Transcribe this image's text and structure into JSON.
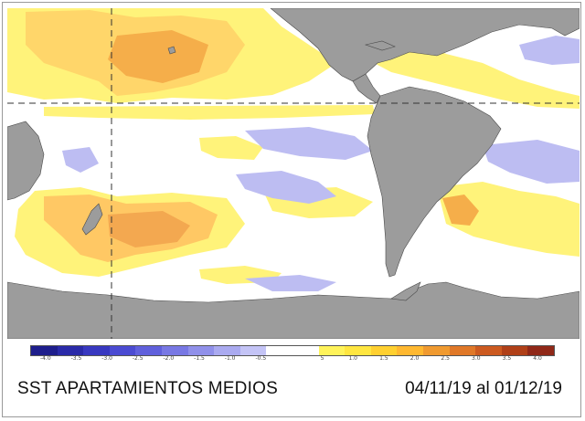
{
  "title": "SST APARTAMIENTOS MEDIOS",
  "date_range": "04/11/19 al 01/12/19",
  "colors": {
    "ocean": "#ffffff",
    "land": "#9c9c9c",
    "warm_light": "#fff000",
    "warm_mid": "#ffd070",
    "warm_strong": "#f0a040",
    "cool_light": "#b8b8f0",
    "cool_mid": "#8c8ce6"
  },
  "colorbar": {
    "swatches": [
      "#1e1e8c",
      "#2a2aa8",
      "#3838c0",
      "#4b4bd2",
      "#6060dc",
      "#7878e4",
      "#9090ea",
      "#aaaaf0",
      "#c4c4f6",
      "#ffffff",
      "#ffffff",
      "#fff35a",
      "#ffe640",
      "#ffd030",
      "#ffb830",
      "#f09a30",
      "#e07828",
      "#cc5a20",
      "#b04018",
      "#902818"
    ],
    "ticks": [
      "-4.0",
      "-3.5",
      "-3.0",
      "-2.5",
      "-2.0",
      "-1.5",
      "-1.0",
      "-0.5",
      "",
      "5",
      "1.0",
      "1.5",
      "2.0",
      "2.5",
      "3.0",
      "3.5",
      "4.0"
    ]
  }
}
